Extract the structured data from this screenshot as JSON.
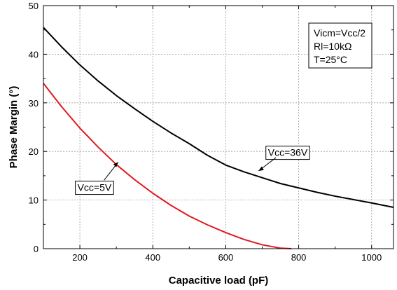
{
  "chart_data": {
    "type": "line",
    "xlabel": "Capacitive load (pF)",
    "ylabel": "Phase Margin (°)",
    "xlim": [
      100,
      1060
    ],
    "ylim": [
      0,
      50
    ],
    "x_ticks": [
      200,
      400,
      600,
      800,
      1000
    ],
    "y_ticks": [
      0,
      10,
      20,
      30,
      40,
      50
    ],
    "x_minor_step": 100,
    "y_minor_step": 5,
    "grid": true,
    "series": [
      {
        "name": "Vcc=36V",
        "color": "#000000",
        "x": [
          100,
          150,
          200,
          250,
          300,
          350,
          400,
          450,
          500,
          550,
          600,
          650,
          700,
          750,
          800,
          850,
          900,
          950,
          1000,
          1060
        ],
        "y": [
          45.5,
          41.5,
          37.8,
          34.5,
          31.5,
          28.8,
          26.2,
          23.8,
          21.6,
          19.2,
          17.2,
          15.8,
          14.6,
          13.4,
          12.5,
          11.6,
          10.8,
          10.1,
          9.4,
          8.5
        ]
      },
      {
        "name": "Vcc=5V",
        "color": "#e0191e",
        "x": [
          100,
          150,
          200,
          250,
          300,
          350,
          400,
          450,
          500,
          550,
          600,
          650,
          700,
          750,
          780
        ],
        "y": [
          34.0,
          29.2,
          24.8,
          20.9,
          17.3,
          14.2,
          11.4,
          8.9,
          6.7,
          4.9,
          3.3,
          1.9,
          0.8,
          0.1,
          0.0
        ]
      }
    ],
    "annotations": [
      {
        "text": "Vcc=36V",
        "series": "Vcc=36V",
        "arrow_to": [
          690,
          16
        ],
        "label_at": [
          770,
          19.8
        ]
      },
      {
        "text": "Vcc=5V",
        "series": "Vcc=5V",
        "arrow_to": [
          305,
          17.8
        ],
        "label_at": [
          240,
          12.6
        ]
      }
    ],
    "legend_box": {
      "lines": [
        "Vicm=Vcc/2",
        "Rl=10kΩ",
        "T=25°C"
      ],
      "placement": "top-right"
    }
  }
}
